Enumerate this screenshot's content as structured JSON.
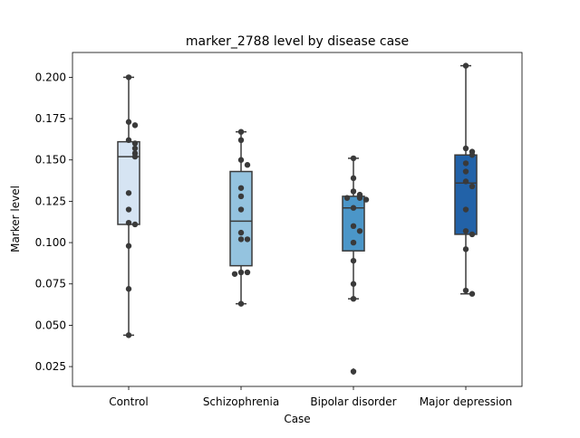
{
  "chart_data": {
    "type": "box",
    "title": "marker_2788 level by disease case",
    "xlabel": "Case",
    "ylabel": "Marker level",
    "categories": [
      "Control",
      "Schizophrenia",
      "Bipolar disorder",
      "Major depression"
    ],
    "ylim": [
      0.013,
      0.215
    ],
    "yticks": [
      0.025,
      0.05,
      0.075,
      0.1,
      0.125,
      0.15,
      0.175,
      0.2
    ],
    "ytick_labels": [
      "0.025",
      "0.050",
      "0.075",
      "0.100",
      "0.125",
      "0.150",
      "0.175",
      "0.200"
    ],
    "grid": false,
    "colors": {
      "boxes": [
        "#d6e4f3",
        "#94c3df",
        "#4b96c8",
        "#2262a8"
      ],
      "lines": "#3a3a3a",
      "points": "#3a3a3a"
    },
    "boxes": [
      {
        "category": "Control",
        "whisker_low": 0.044,
        "q1": 0.111,
        "median": 0.152,
        "q3": 0.161,
        "whisker_high": 0.2,
        "outliers": []
      },
      {
        "category": "Schizophrenia",
        "whisker_low": 0.063,
        "q1": 0.086,
        "median": 0.113,
        "q3": 0.143,
        "whisker_high": 0.167,
        "outliers": []
      },
      {
        "category": "Bipolar disorder",
        "whisker_low": 0.066,
        "q1": 0.095,
        "median": 0.121,
        "q3": 0.128,
        "whisker_high": 0.151,
        "outliers": [
          0.022
        ]
      },
      {
        "category": "Major depression",
        "whisker_low": 0.069,
        "q1": 0.105,
        "median": 0.136,
        "q3": 0.153,
        "whisker_high": 0.207,
        "outliers": []
      }
    ],
    "points": [
      [
        0.2,
        0.173,
        0.171,
        0.162,
        0.16,
        0.157,
        0.154,
        0.152,
        0.13,
        0.12,
        0.112,
        0.111,
        0.098,
        0.072,
        0.044
      ],
      [
        0.167,
        0.162,
        0.15,
        0.147,
        0.133,
        0.128,
        0.12,
        0.106,
        0.102,
        0.102,
        0.082,
        0.082,
        0.081,
        0.063
      ],
      [
        0.151,
        0.139,
        0.131,
        0.129,
        0.127,
        0.127,
        0.126,
        0.121,
        0.11,
        0.107,
        0.1,
        0.089,
        0.075,
        0.066,
        0.022
      ],
      [
        0.207,
        0.157,
        0.155,
        0.153,
        0.148,
        0.143,
        0.137,
        0.134,
        0.12,
        0.107,
        0.105,
        0.096,
        0.071,
        0.069
      ]
    ]
  }
}
